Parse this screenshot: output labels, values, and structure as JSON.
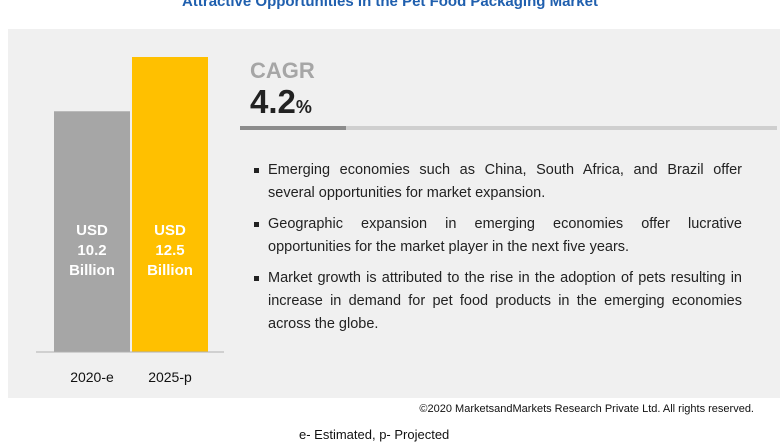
{
  "title": "Attractive Opportunities in the Pet Food Packaging Market",
  "cagr": {
    "label": "CAGR",
    "value": "4.2",
    "unit": "%"
  },
  "bullets": [
    "Emerging economies such as China, South Africa, and Brazil offer several opportunities for market expansion.",
    "Geographic expansion in emerging economies offer lucrative opportunities for the market player in the next five years.",
    "Market growth is attributed to the rise in the adoption of pets resulting in  increase in demand for pet food products in the emerging economies across the globe."
  ],
  "copyright": "©2020 MarketsandMarkets Research Private Ltd. All rights reserved.",
  "footnote": "e- Estimated, p- Projected",
  "colors": {
    "title": "#1f5fae",
    "bar_2020": "#a6a6a6",
    "bar_2025": "#ffc000",
    "panel": "#f0f0f0"
  },
  "chart_data": {
    "type": "bar",
    "categories": [
      "2020-e",
      "2025-p"
    ],
    "values": [
      10.2,
      12.5
    ],
    "value_labels": [
      [
        "USD",
        "10.2",
        "Billion"
      ],
      [
        "USD",
        "12.5",
        "Billion"
      ]
    ],
    "bar_colors": [
      "#a6a6a6",
      "#ffc000"
    ],
    "unit": "USD Billion"
  }
}
